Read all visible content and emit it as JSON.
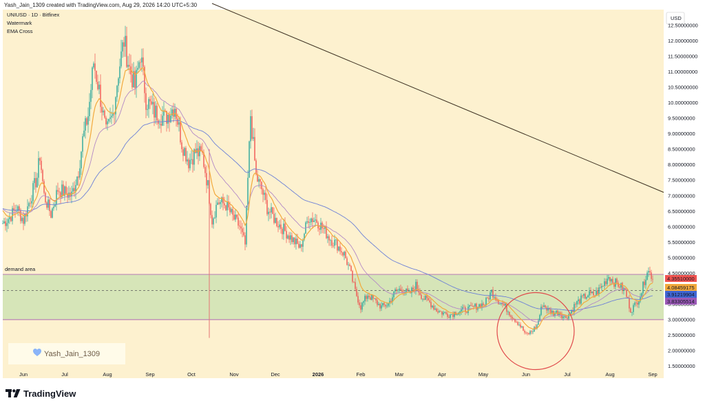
{
  "header": {
    "created_by": "Yash_Jain_1309 created with TradingView.com, Aug 29, 2026 14:20 UTC+5:30"
  },
  "brand": {
    "name": "TradingView"
  },
  "colors": {
    "background": "#fdf1cf",
    "up": "#26a69a",
    "down": "#ef5350",
    "demand_zone": "#cfe3b4",
    "ema_fast": "#f2a93b",
    "ema_mid": "#b388c6",
    "ema_slow": "#6b7fd7",
    "trendline": "#3a2e1f",
    "circle": "#e0494b",
    "spike": "#e57373",
    "watermark_heart": "#8ab4f8"
  },
  "chart_data": {
    "type": "candlestick",
    "symbol": "UNIUSD · 1D · Bitfinex",
    "indicators": [
      "Watermark",
      "EMA Cross"
    ],
    "currency": "USD",
    "y_ticks": [
      1.5,
      2.0,
      2.5,
      3.0,
      3.5,
      4.0,
      4.5,
      5.0,
      5.5,
      6.0,
      6.5,
      7.0,
      7.5,
      8.0,
      8.5,
      9.0,
      9.5,
      10.0,
      10.5,
      11.0,
      11.5,
      12.0,
      12.5
    ],
    "y_tick_labels": [
      "1.50000000",
      "2.00000000",
      "2.50000000",
      "3.00000000",
      "3.50000000",
      "4.00000000",
      "4.50000000",
      "5.00000000",
      "5.50000000",
      "6.00000000",
      "6.50000000",
      "7.00000000",
      "7.50000000",
      "8.00000000",
      "8.50000000",
      "9.00000000",
      "9.50000000",
      "10.00000000",
      "10.50000000",
      "11.00000000",
      "11.50000000",
      "12.00000000",
      "12.50000000"
    ],
    "ylim": [
      1.1,
      13.0
    ],
    "x_ticks": [
      {
        "label": "Jun",
        "day": 15
      },
      {
        "label": "Jul",
        "day": 45
      },
      {
        "label": "Aug",
        "day": 76
      },
      {
        "label": "Sep",
        "day": 107
      },
      {
        "label": "Oct",
        "day": 137
      },
      {
        "label": "Nov",
        "day": 168
      },
      {
        "label": "Dec",
        "day": 198
      },
      {
        "label": "2026",
        "day": 229
      },
      {
        "label": "Feb",
        "day": 260
      },
      {
        "label": "Mar",
        "day": 288
      },
      {
        "label": "Apr",
        "day": 319
      },
      {
        "label": "May",
        "day": 349
      },
      {
        "label": "Jun",
        "day": 380
      },
      {
        "label": "Jul",
        "day": 410
      },
      {
        "label": "Aug",
        "day": 441
      },
      {
        "label": "Sep",
        "day": 472
      }
    ],
    "xlim": [
      0,
      480
    ],
    "price_keypoints": [
      [
        0,
        6.1
      ],
      [
        5,
        6.3
      ],
      [
        10,
        6.6
      ],
      [
        15,
        6.2
      ],
      [
        20,
        6.9
      ],
      [
        25,
        7.6
      ],
      [
        27,
        8.3
      ],
      [
        30,
        7.0
      ],
      [
        35,
        6.4
      ],
      [
        40,
        7.2
      ],
      [
        45,
        7.1
      ],
      [
        50,
        7.0
      ],
      [
        55,
        7.8
      ],
      [
        58,
        8.8
      ],
      [
        62,
        9.6
      ],
      [
        66,
        11.3
      ],
      [
        70,
        10.4
      ],
      [
        75,
        9.0
      ],
      [
        80,
        9.6
      ],
      [
        84,
        11.0
      ],
      [
        88,
        12.0
      ],
      [
        92,
        11.1
      ],
      [
        96,
        10.5
      ],
      [
        100,
        11.6
      ],
      [
        104,
        10.1
      ],
      [
        110,
        9.7
      ],
      [
        118,
        9.5
      ],
      [
        125,
        9.9
      ],
      [
        130,
        8.7
      ],
      [
        135,
        8.1
      ],
      [
        140,
        8.4
      ],
      [
        145,
        8.3
      ],
      [
        149,
        7.3
      ],
      [
        152,
        6.2
      ],
      [
        156,
        6.8
      ],
      [
        162,
        6.7
      ],
      [
        167,
        6.3
      ],
      [
        172,
        6.0
      ],
      [
        176,
        5.4
      ],
      [
        180,
        9.6
      ],
      [
        184,
        7.6
      ],
      [
        188,
        7.2
      ],
      [
        192,
        6.6
      ],
      [
        198,
        6.2
      ],
      [
        204,
        5.9
      ],
      [
        210,
        5.6
      ],
      [
        216,
        5.3
      ],
      [
        222,
        6.3
      ],
      [
        228,
        6.2
      ],
      [
        233,
        5.9
      ],
      [
        238,
        5.6
      ],
      [
        243,
        5.4
      ],
      [
        248,
        5.1
      ],
      [
        252,
        4.6
      ],
      [
        256,
        3.9
      ],
      [
        260,
        3.4
      ],
      [
        265,
        3.8
      ],
      [
        270,
        3.6
      ],
      [
        275,
        3.4
      ],
      [
        280,
        3.5
      ],
      [
        285,
        3.9
      ],
      [
        290,
        4.0
      ],
      [
        295,
        3.8
      ],
      [
        300,
        4.1
      ],
      [
        305,
        3.7
      ],
      [
        310,
        3.55
      ],
      [
        315,
        3.3
      ],
      [
        320,
        3.2
      ],
      [
        325,
        3.15
      ],
      [
        330,
        3.25
      ],
      [
        335,
        3.3
      ],
      [
        340,
        3.35
      ],
      [
        345,
        3.45
      ],
      [
        350,
        3.5
      ],
      [
        355,
        3.9
      ],
      [
        360,
        3.6
      ],
      [
        365,
        3.4
      ],
      [
        370,
        3.1
      ],
      [
        375,
        2.85
      ],
      [
        380,
        2.5
      ],
      [
        384,
        2.6
      ],
      [
        388,
        2.8
      ],
      [
        392,
        3.5
      ],
      [
        396,
        3.3
      ],
      [
        400,
        3.2
      ],
      [
        404,
        3.25
      ],
      [
        408,
        3.05
      ],
      [
        412,
        3.2
      ],
      [
        416,
        3.5
      ],
      [
        420,
        3.65
      ],
      [
        425,
        3.8
      ],
      [
        430,
        3.8
      ],
      [
        435,
        4.05
      ],
      [
        440,
        4.4
      ],
      [
        444,
        4.2
      ],
      [
        448,
        4.1
      ],
      [
        452,
        3.9
      ],
      [
        456,
        3.3
      ],
      [
        460,
        3.5
      ],
      [
        464,
        3.9
      ],
      [
        468,
        4.6
      ],
      [
        472,
        4.36
      ]
    ],
    "spike_day": 150,
    "spike_low": 2.4,
    "spike_high": 8.5,
    "demand_area": {
      "label": "demand area",
      "top": 4.45,
      "bottom": 2.99,
      "dashed_level": 3.93
    },
    "trendline": {
      "from": [
        152,
        13.2
      ],
      "to": [
        480,
        7.1
      ]
    },
    "circle": {
      "center": [
        387,
        2.62
      ],
      "radius_days": 28
    },
    "price_labels": [
      {
        "value": 4.3551,
        "text": "4.35510000",
        "color": "#ef5350"
      },
      {
        "value": 4.08459175,
        "text": "4.08459175",
        "color": "#f2a93b"
      },
      {
        "value": 3.91219904,
        "text": "3.91219904",
        "color": "#3f66d4"
      },
      {
        "value": 3.83305514,
        "text": "3.83305514",
        "color": "#9b59b6"
      }
    ],
    "watermark": "Yash_Jain_1309"
  }
}
